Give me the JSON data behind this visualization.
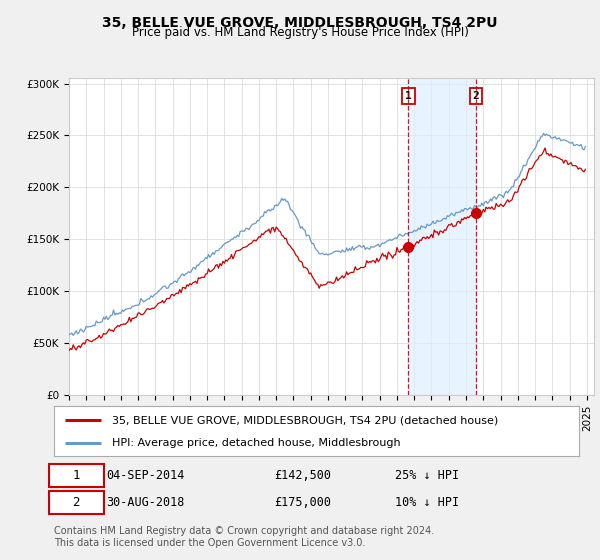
{
  "title": "35, BELLE VUE GROVE, MIDDLESBROUGH, TS4 2PU",
  "subtitle": "Price paid vs. HM Land Registry's House Price Index (HPI)",
  "background_color": "#f0f0f0",
  "plot_bg_color": "#ffffff",
  "line1_color": "#cc0000",
  "line2_color": "#6699cc",
  "shade_color": "#ddeeff",
  "vline_color": "#cc0000",
  "ylim": [
    0,
    300000
  ],
  "yticks": [
    0,
    50000,
    100000,
    150000,
    200000,
    250000,
    300000
  ],
  "ytick_labels": [
    "£0",
    "£50K",
    "£100K",
    "£150K",
    "£200K",
    "£250K",
    "£300K"
  ],
  "sale1_price": 142500,
  "sale2_price": 175000,
  "legend1_label": "35, BELLE VUE GROVE, MIDDLESBROUGH, TS4 2PU (detached house)",
  "legend2_label": "HPI: Average price, detached house, Middlesbrough",
  "footer": "Contains HM Land Registry data © Crown copyright and database right 2024.\nThis data is licensed under the Open Government Licence v3.0.",
  "title_fontsize": 10,
  "subtitle_fontsize": 8.5,
  "tick_fontsize": 7.5,
  "legend_fontsize": 8,
  "ann_fontsize": 8.5,
  "footer_fontsize": 7
}
